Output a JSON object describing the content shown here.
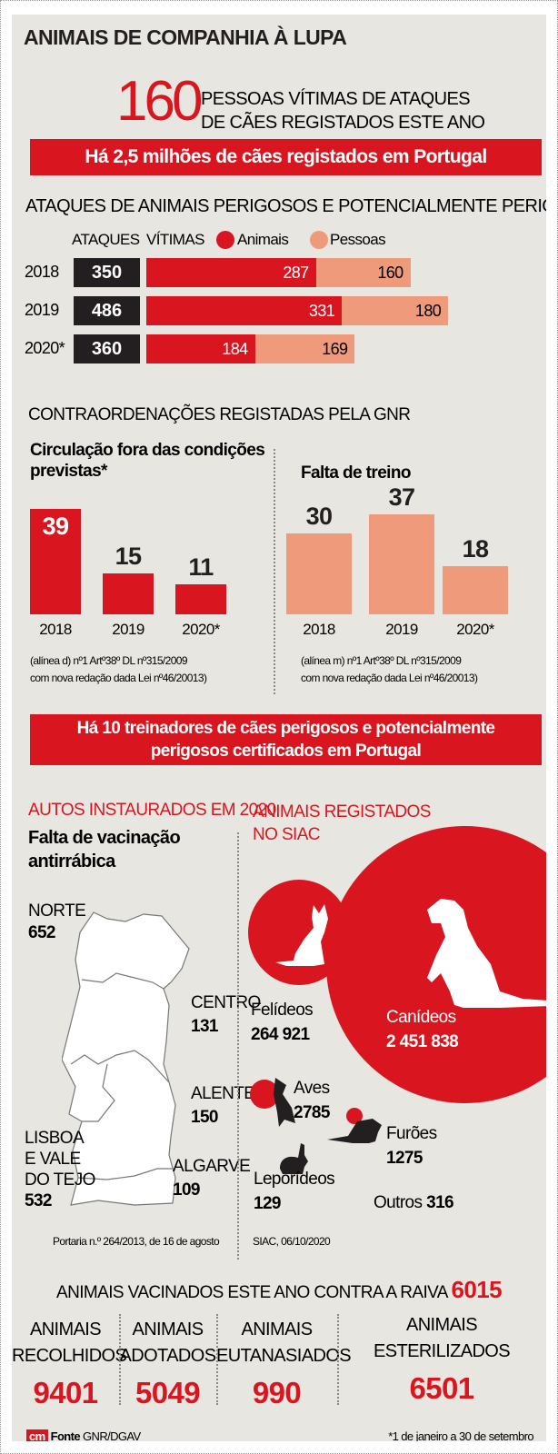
{
  "title": "ANIMAIS DE COMPANHIA À LUPA",
  "headline": {
    "number": "160",
    "line1": "PESSOAS VÍTIMAS DE ATAQUES",
    "line2": "DE CÃES REGISTADOS ESTE ANO"
  },
  "banner1": "Há 2,5 milhões de cães registados em Portugal",
  "colors": {
    "red": "#d9161f",
    "salmon": "#ef9a7b",
    "dark": "#231f20",
    "bg": "#e8e6e0"
  },
  "chart_data": [
    {
      "type": "bar",
      "title": "ATAQUES DE ANIMAIS PERIGOSOS E POTENCIALMENTE PERIGOSOS",
      "orientation": "horizontal-stacked",
      "header_attacks": "ATAQUES",
      "header_victims": "VÍTIMAS",
      "categories": [
        "2018",
        "2019",
        "2020*"
      ],
      "attacks": [
        "350",
        "486",
        "360"
      ],
      "series": [
        {
          "name": "Animais",
          "values": [
            287,
            331,
            184
          ]
        },
        {
          "name": "Pessoas",
          "values": [
            160,
            180,
            169
          ]
        }
      ],
      "legend": "top"
    },
    {
      "type": "bar",
      "section": "CONTRAORDENAÇÕES REGISTADAS PELA GNR",
      "title": "Circulação fora das condições previstas*",
      "categories": [
        "2018",
        "2019",
        "2020*"
      ],
      "values": [
        39,
        15,
        11
      ],
      "note1": "(alínea d) nº1 Artº38º DL nº315/2009",
      "note2": "com nova redação dada Lei nº46/20013)"
    },
    {
      "type": "bar",
      "title": "Falta de treino",
      "categories": [
        "2018",
        "2019",
        "2020*"
      ],
      "values": [
        30,
        37,
        18
      ],
      "note1": "(alínea m) nº1 Artº38º DL nº315/2009",
      "note2": "com nova redação dada Lei nº46/20013)"
    }
  ],
  "banner2": {
    "line1": "Há 10 treinadores de cães perigosos e potencialmente",
    "line2": "perigosos certificados em Portugal"
  },
  "autos": {
    "heading": "AUTOS INSTAURADOS EM 2020",
    "sub1": "Falta de vacinação",
    "sub2": "antirrábica",
    "regions": [
      {
        "name": "NORTE",
        "value": "652"
      },
      {
        "name": "CENTRO",
        "value": "131"
      },
      {
        "name": "ALENTEJO",
        "value": "150"
      },
      {
        "name1": "LISBOA",
        "name2": "E VALE",
        "name3": "DO TEJO",
        "value": "532"
      },
      {
        "name": "ALGARVE",
        "value": "109"
      }
    ],
    "source": "Portaria n.º 264/2013, de 16 de agosto"
  },
  "siac": {
    "heading1": "ANIMAIS REGISTADOS",
    "heading2": "NO SIAC",
    "felideos": {
      "label": "Felídeos",
      "value": "264 921"
    },
    "canideos": {
      "label": "Canídeos",
      "value": "2 451 838"
    },
    "aves": {
      "label": "Aves",
      "value": "2785"
    },
    "furoes": {
      "label": "Furões",
      "value": "1275"
    },
    "leporideos": {
      "label": "Leporídeos",
      "value": "129"
    },
    "outros": {
      "label": "Outros",
      "value": "316"
    },
    "source": "SIAC, 06/10/2020"
  },
  "vacinados": {
    "label": "ANIMAIS VACINADOS ESTE ANO CONTRA A RAIVA",
    "value": "6015"
  },
  "stats": [
    {
      "l1": "ANIMAIS",
      "l2": "RECOLHIDOS",
      "value": "9401"
    },
    {
      "l1": "ANIMAIS",
      "l2": "ADOTADOS",
      "value": "5049"
    },
    {
      "l1": "ANIMAIS",
      "l2": "EUTANASIADOS",
      "value": "990"
    },
    {
      "l1": "ANIMAIS",
      "l2": "ESTERILIZADOS",
      "value": "6501"
    }
  ],
  "footer": {
    "logo": "cm",
    "fonte": "Fonte",
    "source": "GNR/DGAV",
    "note": "*1 de janeiro a 30 de setembro"
  }
}
